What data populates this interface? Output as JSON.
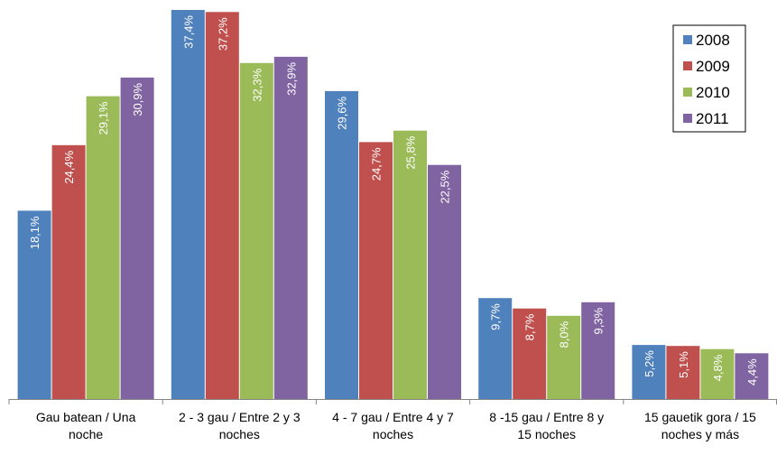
{
  "chart_data": {
    "type": "bar",
    "categories": [
      [
        "Gau batean / Una",
        "noche"
      ],
      [
        "2 - 3 gau / Entre 2 y 3",
        "noches"
      ],
      [
        "4 - 7 gau / Entre 4 y 7",
        "noches"
      ],
      [
        "8 -15 gau / Entre 8 y",
        "15 noches"
      ],
      [
        "15 gauetik gora / 15",
        "noches y más"
      ]
    ],
    "series": [
      {
        "name": "2008",
        "color": "#4F81BD",
        "values": [
          18.1,
          37.4,
          29.6,
          9.7,
          5.2
        ],
        "labels": [
          "18,1%",
          "37,4%",
          "29,6%",
          "9,7%",
          "5,2%"
        ]
      },
      {
        "name": "2009",
        "color": "#C0504D",
        "values": [
          24.4,
          37.2,
          24.7,
          8.7,
          5.1
        ],
        "labels": [
          "24,4%",
          "37,2%",
          "24,7%",
          "8,7%",
          "5,1%"
        ]
      },
      {
        "name": "2010",
        "color": "#9BBB59",
        "values": [
          29.1,
          32.3,
          25.8,
          8.0,
          4.8
        ],
        "labels": [
          "29,1%",
          "32,3%",
          "25,8%",
          "8,0%",
          "4,8%"
        ]
      },
      {
        "name": "2011",
        "color": "#8064A2",
        "values": [
          30.9,
          32.9,
          22.5,
          9.3,
          4.4
        ],
        "labels": [
          "30,9%",
          "32,9%",
          "22,5%",
          "9,3%",
          "4,4%"
        ]
      }
    ],
    "title": "",
    "xlabel": "",
    "ylabel": "",
    "ylim": [
      0,
      37.4
    ],
    "grid": false,
    "legend_position": "top-right",
    "value_labels": "inside-top-rotated"
  }
}
